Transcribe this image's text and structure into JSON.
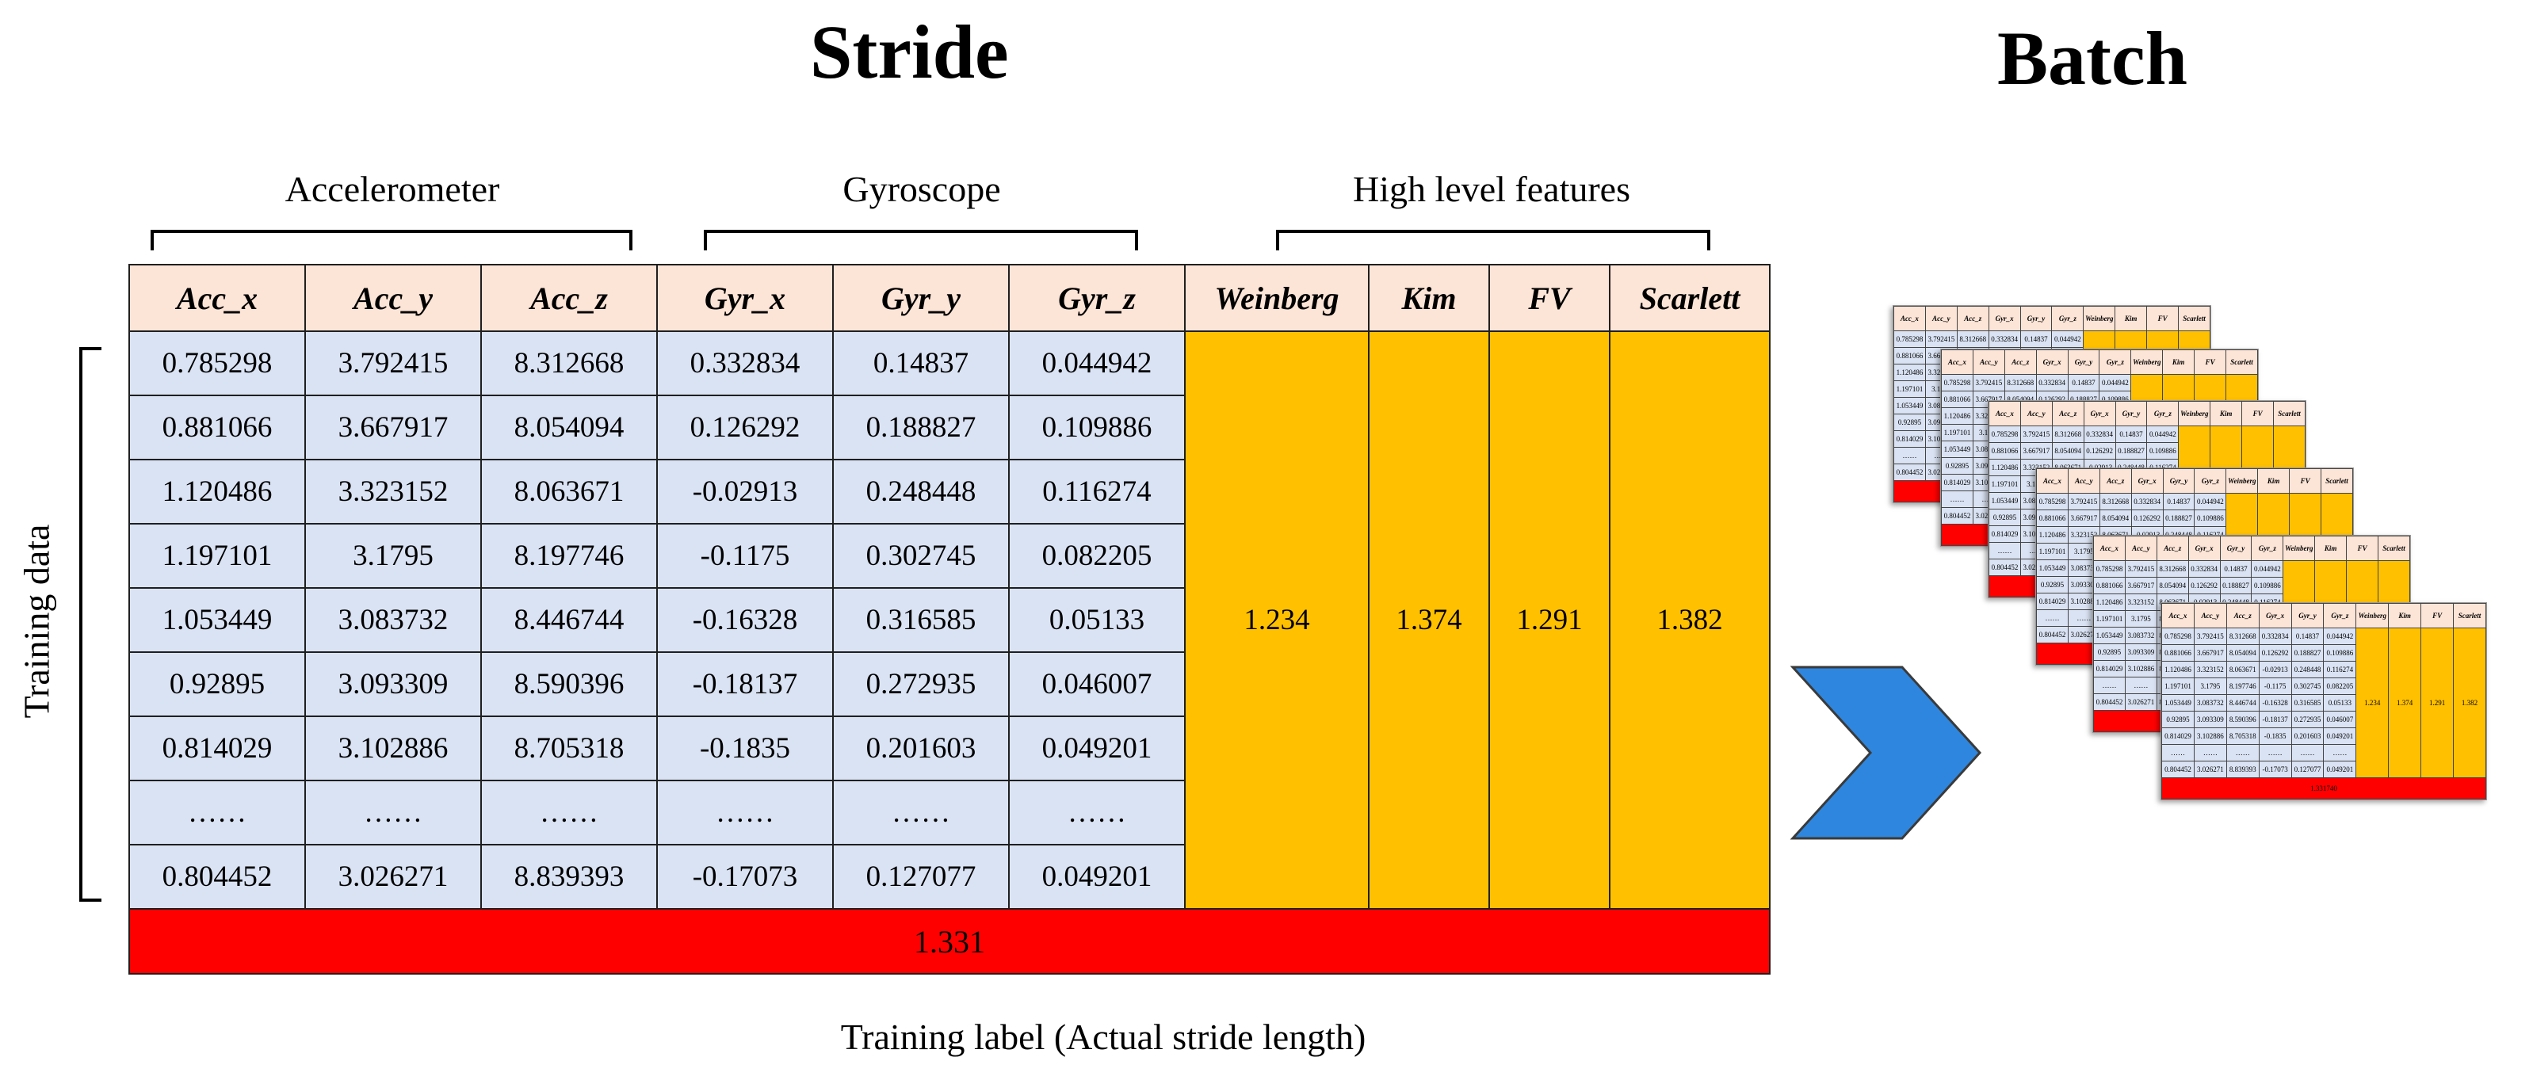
{
  "titles": {
    "stride": "Stride",
    "batch": "Batch"
  },
  "groups": {
    "accelerometer": "Accelerometer",
    "gyroscope": "Gyroscope",
    "high_level": "High level features"
  },
  "headers": [
    "Acc_x",
    "Acc_y",
    "Acc_z",
    "Gyr_x",
    "Gyr_y",
    "Gyr_z",
    "Weinberg",
    "Kim",
    "FV",
    "Scarlett"
  ],
  "rows": [
    [
      "0.785298",
      "3.792415",
      "8.312668",
      "0.332834",
      "0.14837",
      "0.044942"
    ],
    [
      "0.881066",
      "3.667917",
      "8.054094",
      "0.126292",
      "0.188827",
      "0.109886"
    ],
    [
      "1.120486",
      "3.323152",
      "8.063671",
      "-0.02913",
      "0.248448",
      "0.116274"
    ],
    [
      "1.197101",
      "3.1795",
      "8.197746",
      "-0.1175",
      "0.302745",
      "0.082205"
    ],
    [
      "1.053449",
      "3.083732",
      "8.446744",
      "-0.16328",
      "0.316585",
      "0.05133"
    ],
    [
      "0.92895",
      "3.093309",
      "8.590396",
      "-0.18137",
      "0.272935",
      "0.046007"
    ],
    [
      "0.814029",
      "3.102886",
      "8.705318",
      "-0.1835",
      "0.201603",
      "0.049201"
    ],
    [
      "……",
      "……",
      "……",
      "……",
      "……",
      "……"
    ],
    [
      "0.804452",
      "3.026271",
      "8.839393",
      "-0.17073",
      "0.127077",
      "0.049201"
    ]
  ],
  "features": [
    "1.234",
    "1.374",
    "1.291",
    "1.382"
  ],
  "label_value": "1.331",
  "side_label": "Training data",
  "bottom_label": "Training label (Actual stride length)",
  "mini_label_value": "1.331740",
  "colors": {
    "header": "#fce4d6",
    "sensor": "#dae3f3",
    "feature": "#ffc000",
    "label": "#ff0000",
    "arrow": "#2e86de"
  }
}
